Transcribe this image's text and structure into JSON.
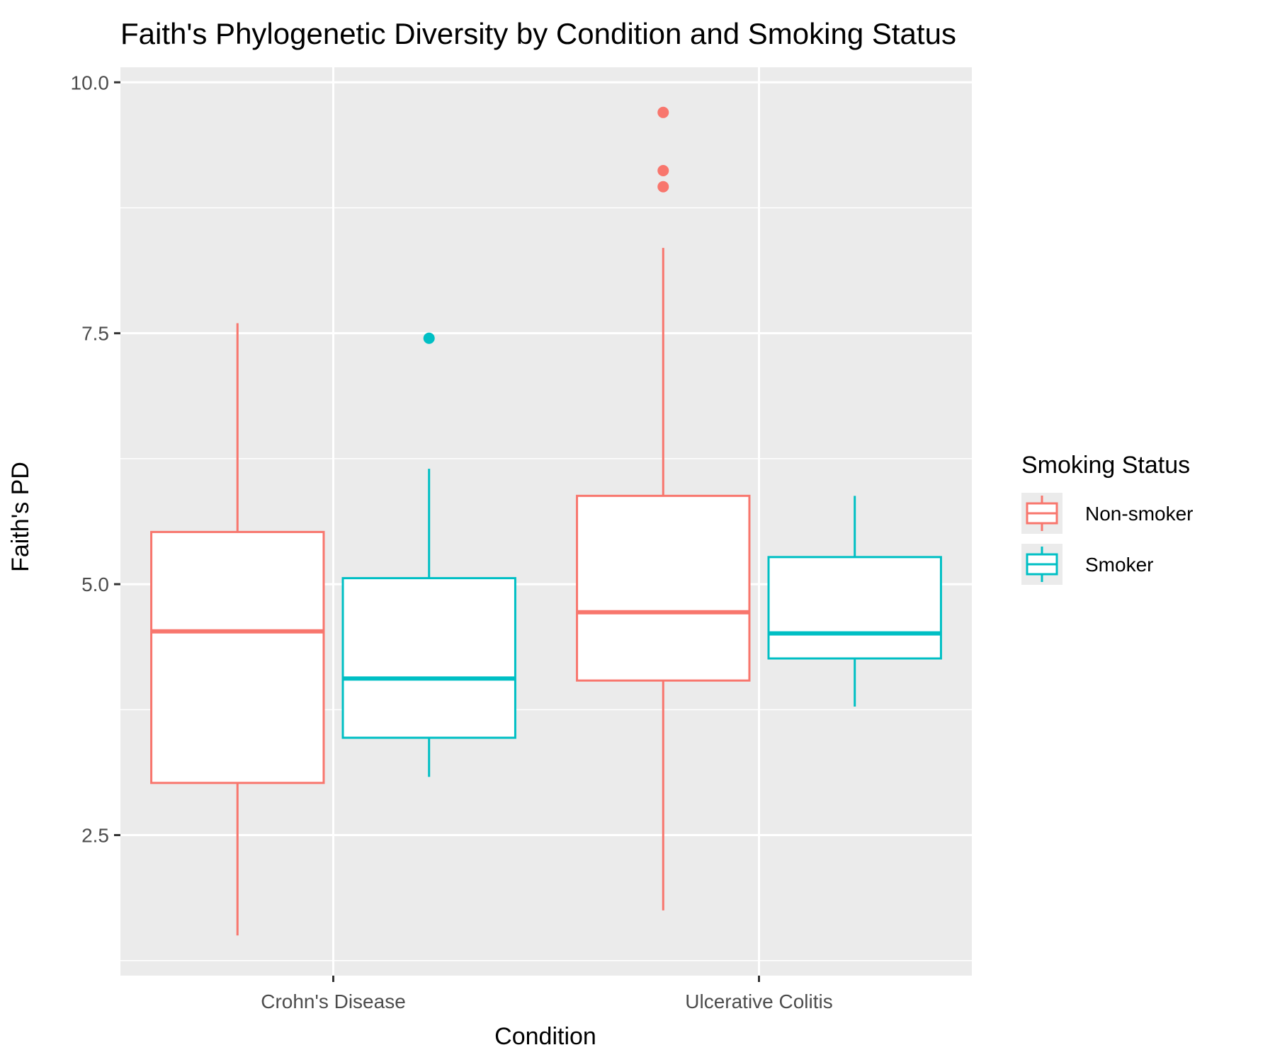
{
  "chart_data": {
    "type": "box",
    "title": "Faith's Phylogenetic Diversity by Condition and Smoking Status",
    "xlabel": "Condition",
    "ylabel": "Faith's PD",
    "categories": [
      "Crohn's Disease",
      "Ulcerative Colitis"
    ],
    "ylim": [
      1.1,
      10.15
    ],
    "yticks": [
      2.5,
      5.0,
      7.5,
      10.0
    ],
    "ytick_labels": [
      "2.5",
      "5.0",
      "7.5",
      "10.0"
    ],
    "grid": true,
    "legend": {
      "title": "Smoking Status",
      "position": "right",
      "entries": [
        "Non-smoker",
        "Smoker"
      ]
    },
    "series": [
      {
        "name": "Non-smoker",
        "color": "#F8766D",
        "boxes": [
          {
            "category": "Crohn's Disease",
            "whisker_low": 1.5,
            "q1": 3.02,
            "median": 4.53,
            "q3": 5.52,
            "whisker_high": 7.6,
            "outliers": []
          },
          {
            "category": "Ulcerative Colitis",
            "whisker_low": 1.75,
            "q1": 4.04,
            "median": 4.72,
            "q3": 5.88,
            "whisker_high": 8.35,
            "outliers": [
              9.7,
              9.12,
              8.96
            ]
          }
        ]
      },
      {
        "name": "Smoker",
        "color": "#00BFC4",
        "boxes": [
          {
            "category": "Crohn's Disease",
            "whisker_low": 3.08,
            "q1": 3.47,
            "median": 4.06,
            "q3": 5.06,
            "whisker_high": 6.15,
            "outliers": [
              7.45
            ]
          },
          {
            "category": "Ulcerative Colitis",
            "whisker_low": 3.78,
            "q1": 4.26,
            "median": 4.51,
            "q3": 5.27,
            "whisker_high": 5.88,
            "outliers": []
          }
        ]
      }
    ]
  }
}
